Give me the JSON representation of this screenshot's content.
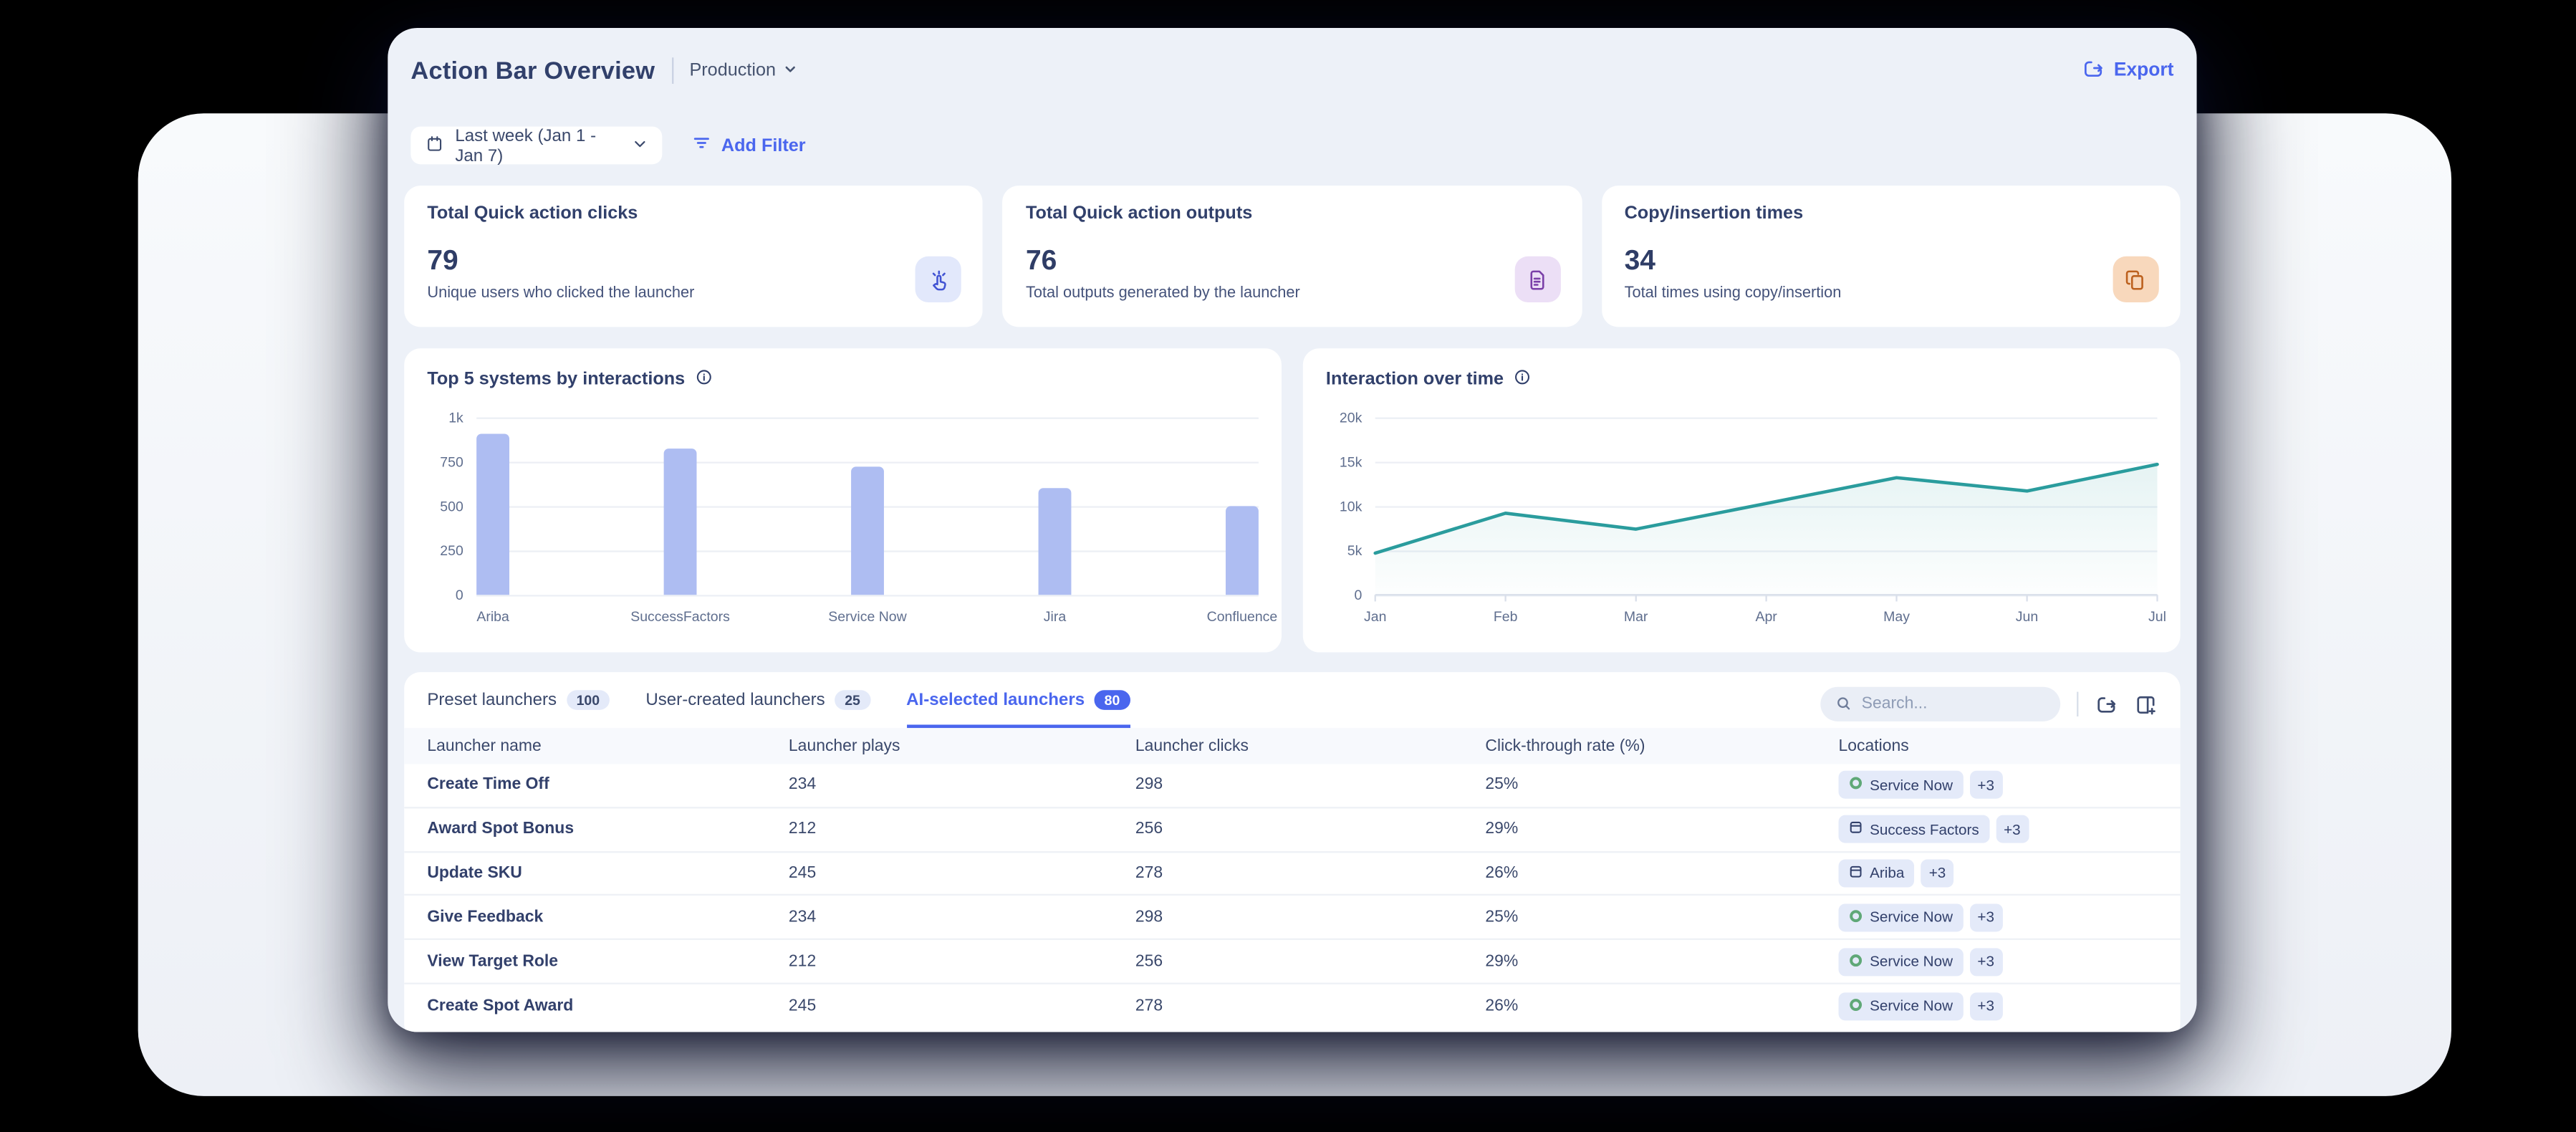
{
  "header": {
    "title": "Action Bar Overview",
    "environment": "Production",
    "export_label": "Export"
  },
  "filters": {
    "date_range": "Last week (Jan 1 - Jan 7)",
    "add_filter_label": "Add Filter"
  },
  "stat_cards": [
    {
      "title": "Total Quick action clicks",
      "value": "79",
      "subtitle": "Unique users who clicked the launcher",
      "icon": "click-icon",
      "icon_bg": "#E2E8FB",
      "icon_color": "#4153D3"
    },
    {
      "title": "Total Quick action outputs",
      "value": "76",
      "subtitle": "Total outputs generated by the launcher",
      "icon": "document-icon",
      "icon_bg": "#ECDFF6",
      "icon_color": "#7A3FA8"
    },
    {
      "title": "Copy/insertion times",
      "value": "34",
      "subtitle": "Total times using copy/insertion",
      "icon": "copy-icon",
      "icon_bg": "#F8D8BC",
      "icon_color": "#BC601D"
    }
  ],
  "chart_data": [
    {
      "type": "bar",
      "title": "Top 5 systems by interactions",
      "categories": [
        "Ariba",
        "SuccessFactors",
        "Service Now",
        "Jira",
        "Confluence"
      ],
      "values": [
        905,
        820,
        720,
        600,
        505
      ],
      "ylim": [
        0,
        1000
      ],
      "yticks": [
        "1k",
        "750",
        "500",
        "250",
        "0"
      ],
      "bar_color": "#AEBDF2",
      "grid": true,
      "legend": false
    },
    {
      "type": "line",
      "title": "Interaction over time",
      "x": [
        "Jan",
        "Feb",
        "Mar",
        "Apr",
        "May",
        "Jun",
        "Jul"
      ],
      "values": [
        4700,
        9200,
        7400,
        10300,
        13200,
        11700,
        14700
      ],
      "ylim": [
        0,
        20000
      ],
      "yticks": [
        "20k",
        "15k",
        "10k",
        "5k",
        "0"
      ],
      "line_color": "#2A9C9D",
      "area": true,
      "grid": true,
      "legend": false
    }
  ],
  "table": {
    "tabs": [
      {
        "label": "Preset launchers",
        "count": "100",
        "active": false
      },
      {
        "label": "User-created launchers",
        "count": "25",
        "active": false
      },
      {
        "label": "AI-selected launchers",
        "count": "80",
        "active": true
      }
    ],
    "search_placeholder": "Search...",
    "columns": [
      "Launcher name",
      "Launcher plays",
      "Launcher clicks",
      "Click-through rate (%)",
      "Locations"
    ],
    "rows": [
      {
        "name": "Create Time Off",
        "plays": "234",
        "clicks": "298",
        "ctr": "25%",
        "location": "Service Now",
        "location_icon": "servicenow-icon",
        "more": "+3"
      },
      {
        "name": "Award Spot Bonus",
        "plays": "212",
        "clicks": "256",
        "ctr": "29%",
        "location": "Success Factors",
        "location_icon": "app-window-icon",
        "more": "+3"
      },
      {
        "name": "Update SKU",
        "plays": "245",
        "clicks": "278",
        "ctr": "26%",
        "location": "Ariba",
        "location_icon": "app-window-icon",
        "more": "+3"
      },
      {
        "name": "Give Feedback",
        "plays": "234",
        "clicks": "298",
        "ctr": "25%",
        "location": "Service Now",
        "location_icon": "servicenow-icon",
        "more": "+3"
      },
      {
        "name": "View Target Role",
        "plays": "212",
        "clicks": "256",
        "ctr": "29%",
        "location": "Service Now",
        "location_icon": "servicenow-icon",
        "more": "+3"
      },
      {
        "name": "Create Spot Award",
        "plays": "245",
        "clicks": "278",
        "ctr": "26%",
        "location": "Service Now",
        "location_icon": "servicenow-icon",
        "more": "+3"
      }
    ]
  },
  "colors": {
    "accent_blue": "#4A66EE",
    "navy": "#32406B",
    "bar_fill": "#AEBDF2",
    "line_teal": "#2A9C9D",
    "servicenow_green": "#5FA877",
    "chip_bg": "#E4EAF9",
    "app_bg": "#EDF1F8"
  }
}
